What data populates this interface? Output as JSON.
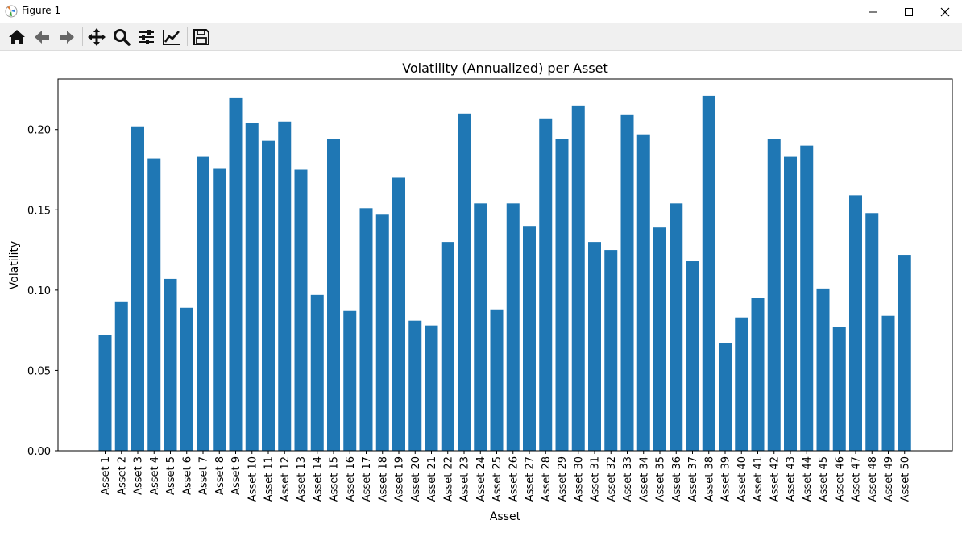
{
  "window": {
    "title": "Figure 1",
    "minimize_icon": "minimize-icon",
    "maximize_icon": "maximize-icon",
    "close_icon": "close-icon"
  },
  "toolbar": {
    "tools": [
      {
        "name": "home",
        "icon": "home-icon"
      },
      {
        "name": "back",
        "icon": "arrow-left-icon"
      },
      {
        "name": "forward",
        "icon": "arrow-right-icon"
      },
      {
        "name": "pan",
        "icon": "move-icon"
      },
      {
        "name": "zoom",
        "icon": "magnifier-icon"
      },
      {
        "name": "configure-subplots",
        "icon": "sliders-icon"
      },
      {
        "name": "edit-axis",
        "icon": "line-chart-icon"
      },
      {
        "name": "save",
        "icon": "floppy-disk-icon"
      }
    ]
  },
  "chart_data": {
    "type": "bar",
    "title": "Volatility (Annualized) per Asset",
    "xlabel": "Asset",
    "ylabel": "Volatility",
    "ylim": [
      0,
      0.2315
    ],
    "yticks": [
      "0.00",
      "0.05",
      "0.10",
      "0.15",
      "0.20"
    ],
    "ytick_values": [
      0,
      0.05,
      0.1,
      0.15,
      0.2
    ],
    "bar_color": "#1f77b4",
    "grid": false,
    "legend": null,
    "categories": [
      "Asset 1",
      "Asset 2",
      "Asset 3",
      "Asset 4",
      "Asset 5",
      "Asset 6",
      "Asset 7",
      "Asset 8",
      "Asset 9",
      "Asset 10",
      "Asset 11",
      "Asset 12",
      "Asset 13",
      "Asset 14",
      "Asset 15",
      "Asset 16",
      "Asset 17",
      "Asset 18",
      "Asset 19",
      "Asset 20",
      "Asset 21",
      "Asset 22",
      "Asset 23",
      "Asset 24",
      "Asset 25",
      "Asset 26",
      "Asset 27",
      "Asset 28",
      "Asset 29",
      "Asset 30",
      "Asset 31",
      "Asset 32",
      "Asset 33",
      "Asset 34",
      "Asset 35",
      "Asset 36",
      "Asset 37",
      "Asset 38",
      "Asset 39",
      "Asset 40",
      "Asset 41",
      "Asset 42",
      "Asset 43",
      "Asset 44",
      "Asset 45",
      "Asset 46",
      "Asset 47",
      "Asset 48",
      "Asset 49",
      "Asset 50"
    ],
    "values": [
      0.072,
      0.093,
      0.202,
      0.182,
      0.107,
      0.089,
      0.183,
      0.176,
      0.22,
      0.204,
      0.193,
      0.205,
      0.175,
      0.097,
      0.194,
      0.087,
      0.151,
      0.147,
      0.17,
      0.081,
      0.078,
      0.13,
      0.21,
      0.154,
      0.088,
      0.154,
      0.14,
      0.207,
      0.194,
      0.215,
      0.13,
      0.125,
      0.209,
      0.197,
      0.139,
      0.154,
      0.118,
      0.221,
      0.067,
      0.083,
      0.095,
      0.194,
      0.183,
      0.19,
      0.101,
      0.077,
      0.159,
      0.148,
      0.084,
      0.122
    ]
  }
}
